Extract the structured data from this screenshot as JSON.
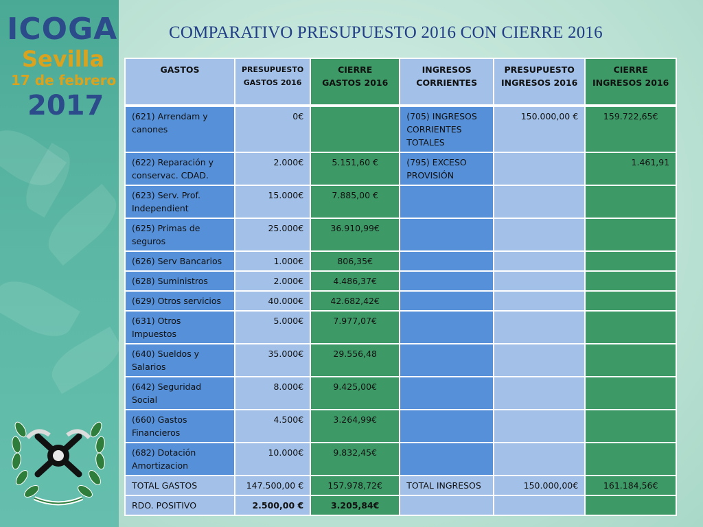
{
  "brand": {
    "name": "ICOGA",
    "city": "Sevilla",
    "date": "17 de febrero",
    "year": "2017"
  },
  "title": "COMPARATIVO PRESUPUESTO 2016 CON CIERRE 2016",
  "table": {
    "headers": [
      "GASTOS",
      "PRESUPUESTO GASTOS 2016",
      "CIERRE GASTOS 2016",
      "INGRESOS CORRIENTES",
      "PRESUPUESTO INGRESOS 2016",
      "CIERRE INGRESOS 2016"
    ],
    "rows": [
      [
        "(621) Arrendam y canones",
        "0€",
        "",
        "(705) INGRESOS CORRIENTES TOTALES",
        "150.000,00 €",
        "159.722,65€"
      ],
      [
        "(622) Reparación y conservac. CDAD.",
        "2.000€",
        "5.151,60 €",
        "(795) EXCESO PROVISIÓN",
        "",
        "1.461,91"
      ],
      [
        "(623) Serv. Prof. Independient",
        "15.000€",
        "7.885,00 €",
        "",
        "",
        ""
      ],
      [
        "(625) Primas de seguros",
        "25.000€",
        "36.910,99€",
        "",
        "",
        ""
      ],
      [
        "(626) Serv Bancarios",
        "1.000€",
        "806,35€",
        "",
        "",
        ""
      ],
      [
        "(628) Suministros",
        "2.000€",
        "4.486,37€",
        "",
        "",
        ""
      ],
      [
        "(629) Otros servicios",
        "40.000€",
        "42.682,42€",
        "",
        "",
        ""
      ],
      [
        "(631) Otros Impuestos",
        "5.000€",
        "7.977,07€",
        "",
        "",
        ""
      ],
      [
        "(640) Sueldos y Salarios",
        "35.000€",
        "29.556,48",
        "",
        "",
        ""
      ],
      [
        "(642) Seguridad Social",
        "8.000€",
        "9.425,00€",
        "",
        "",
        ""
      ],
      [
        "(660) Gastos Financieros",
        "4.500€",
        "3.264,99€",
        "",
        "",
        ""
      ],
      [
        "(682) Dotación Amortizacion",
        "10.000€",
        "9.832,45€",
        "",
        "",
        ""
      ],
      [
        "TOTAL GASTOS",
        "147.500,00 €",
        "157.978,72€",
        "TOTAL INGRESOS",
        "150.000,00€",
        "161.184,56€"
      ],
      [
        "RDO. POSITIVO",
        "2.500,00 €",
        "3.205,84€",
        "",
        "",
        ""
      ]
    ]
  },
  "colors": {
    "blue_dark": "#5690d8",
    "blue_light": "#a2c0e8",
    "green": "#3d9a66",
    "title": "#213e86",
    "brand_blue": "#2c4b8a",
    "brand_gold": "#d9a21f"
  }
}
